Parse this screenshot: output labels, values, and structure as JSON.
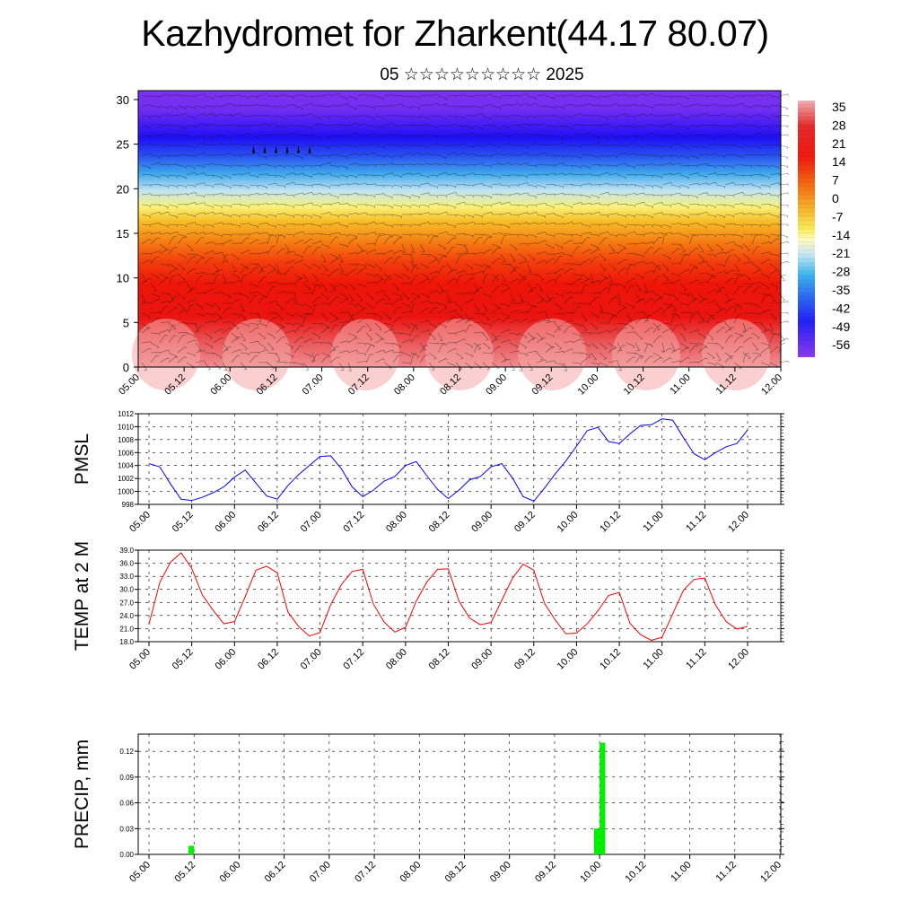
{
  "title": "Kazhydromet for Zharkent(44.17 80.07)",
  "subtitle": "05 ☆☆☆☆☆☆☆☆☆ 2025",
  "time_labels": [
    "05.00",
    "05.12",
    "06.00",
    "06.12",
    "07.00",
    "07.12",
    "08.00",
    "08.12",
    "09.00",
    "09.12",
    "10.00",
    "10.12",
    "11.00",
    "11.12",
    "12.00"
  ],
  "chart_data": [
    {
      "type": "heatmap",
      "name": "cross-section",
      "y_ticks": [
        "0",
        "5",
        "10",
        "15",
        "20",
        "25",
        "30"
      ],
      "ylim": [
        0,
        31
      ],
      "colorbar_labels": [
        "35",
        "28",
        "21",
        "14",
        "7",
        "0",
        "-7",
        "-14",
        "-21",
        "-28",
        "-35",
        "-42",
        "-49",
        "-56"
      ],
      "colorbar_range": [
        -63,
        42
      ]
    },
    {
      "type": "line",
      "ylabel": "PMSL",
      "ylim": [
        998,
        1012
      ],
      "y_ticks": [
        "998",
        "1000",
        "1002",
        "1004",
        "1006",
        "1008",
        "1010",
        "1012"
      ],
      "color": "#0000ff",
      "values": [
        1004.3,
        1003.8,
        1001.2,
        998.8,
        998.6,
        999.1,
        999.8,
        1000.7,
        1002.2,
        1003.3,
        1001.3,
        999.3,
        998.8,
        1000.9,
        1002.6,
        1004.0,
        1005.4,
        1005.5,
        1003.5,
        1000.7,
        999.2,
        1000.2,
        1001.6,
        1002.3,
        1004.0,
        1004.6,
        1002.4,
        1000.3,
        998.9,
        1000.2,
        1001.8,
        1002.3,
        1003.8,
        1004.3,
        1002.1,
        999.2,
        998.5,
        1000.5,
        1002.7,
        1004.7,
        1007.0,
        1009.4,
        1009.9,
        1007.7,
        1007.4,
        1008.9,
        1010.2,
        1010.3,
        1011.2,
        1011.0,
        1008.3,
        1005.8,
        1004.9,
        1006.0,
        1006.9,
        1007.4,
        1009.5
      ]
    },
    {
      "type": "line",
      "ylabel": "TEMP at 2 M",
      "ylim": [
        18,
        39
      ],
      "y_ticks": [
        "18.0",
        "21.0",
        "24.0",
        "27.0",
        "30.0",
        "33.0",
        "36.0",
        "39.0"
      ],
      "color": "#ff0000",
      "values": [
        22.0,
        31.5,
        36.2,
        38.4,
        34.8,
        28.7,
        25.2,
        22.1,
        22.6,
        28.3,
        34.4,
        35.3,
        33.8,
        24.8,
        21.5,
        19.3,
        20.1,
        26.5,
        31.1,
        34.1,
        34.6,
        26.6,
        22.5,
        20.2,
        21.3,
        27.3,
        31.7,
        34.6,
        34.7,
        27.3,
        23.4,
        21.9,
        22.4,
        27.5,
        32.5,
        35.8,
        34.4,
        26.8,
        23.0,
        19.8,
        20.0,
        22.1,
        25.1,
        28.6,
        29.3,
        22.2,
        19.6,
        18.3,
        19.0,
        24.4,
        29.8,
        32.3,
        32.6,
        26.4,
        22.6,
        20.9,
        21.5
      ]
    },
    {
      "type": "bar",
      "ylabel": "PRECIP, mm",
      "ylim": [
        0,
        0.14
      ],
      "y_ticks": [
        "0.00",
        "0.03",
        "0.06",
        "0.09",
        "0.12"
      ],
      "color": "#00ee00",
      "values": [
        0,
        0,
        0,
        0,
        0,
        0,
        0,
        0.01,
        0,
        0,
        0,
        0,
        0,
        0,
        0,
        0,
        0,
        0,
        0,
        0,
        0,
        0,
        0,
        0,
        0,
        0,
        0,
        0,
        0,
        0,
        0,
        0,
        0,
        0,
        0,
        0,
        0,
        0,
        0,
        0,
        0,
        0,
        0,
        0,
        0,
        0,
        0,
        0,
        0,
        0,
        0,
        0,
        0,
        0,
        0,
        0,
        0,
        0,
        0,
        0,
        0,
        0,
        0,
        0,
        0,
        0,
        0,
        0,
        0,
        0,
        0,
        0,
        0,
        0,
        0,
        0,
        0,
        0,
        0,
        0.03,
        0.13,
        0,
        0,
        0,
        0,
        0,
        0,
        0,
        0,
        0,
        0,
        0,
        0,
        0,
        0,
        0,
        0,
        0,
        0,
        0,
        0,
        0,
        0,
        0,
        0,
        0,
        0,
        0,
        0,
        0,
        0,
        0
      ]
    }
  ]
}
